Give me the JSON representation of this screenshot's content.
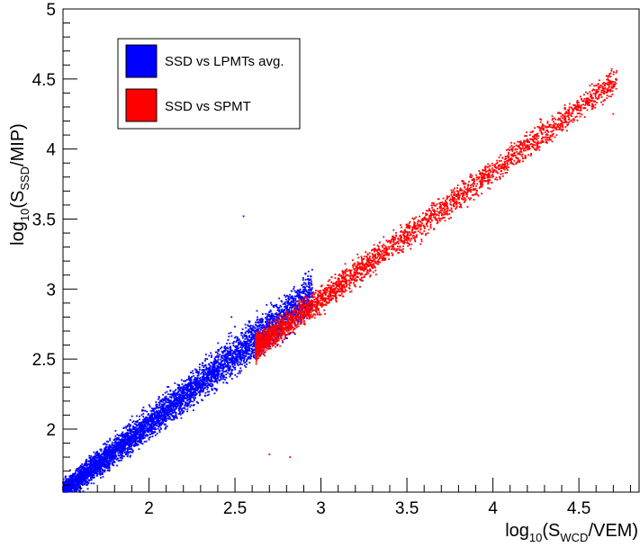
{
  "chart_data": {
    "type": "scatter",
    "xlabel": {
      "prefix": "log",
      "base": "10",
      "open": "(S",
      "sub": "WCD",
      "rest": "/VEM)"
    },
    "ylabel": {
      "prefix": "log",
      "base": "10",
      "open": "(S",
      "sub": "SSD",
      "rest": "/MIP)"
    },
    "xlim": [
      1.5,
      4.85
    ],
    "ylim": [
      1.55,
      5.0
    ],
    "xticks": [
      "2",
      "2.5",
      "3",
      "3.5",
      "4",
      "4.5"
    ],
    "yticks": [
      "2",
      "2.5",
      "3",
      "3.5",
      "4",
      "4.5",
      "5"
    ],
    "legend_position": "top-left",
    "series": [
      {
        "name": "SSD vs LPMTs avg.",
        "color": "#0000ff",
        "density": "dense band from (1.5, 1.6) rising along y ≈ 0.98x + 0.05 to about (2.9, 3.1)",
        "sample_points": [
          [
            1.55,
            1.62
          ],
          [
            1.7,
            1.72
          ],
          [
            1.85,
            1.85
          ],
          [
            2.0,
            1.98
          ],
          [
            2.15,
            2.12
          ],
          [
            2.3,
            2.27
          ],
          [
            2.45,
            2.42
          ],
          [
            2.6,
            2.57
          ],
          [
            2.75,
            2.72
          ],
          [
            2.9,
            2.9
          ],
          [
            2.48,
            2.8
          ],
          [
            2.55,
            3.52
          ]
        ]
      },
      {
        "name": "SSD vs SPMT",
        "color": "#ff0000",
        "density": "band from about (2.65, 2.5) rising to about (4.7, 4.45), thinner at high x",
        "sample_points": [
          [
            2.7,
            2.6
          ],
          [
            2.85,
            2.75
          ],
          [
            3.0,
            2.9
          ],
          [
            3.2,
            3.1
          ],
          [
            3.4,
            3.3
          ],
          [
            3.6,
            3.5
          ],
          [
            3.8,
            3.68
          ],
          [
            4.0,
            3.85
          ],
          [
            4.2,
            4.05
          ],
          [
            4.4,
            4.2
          ],
          [
            4.55,
            4.32
          ],
          [
            4.7,
            4.48
          ],
          [
            4.7,
            4.25
          ],
          [
            2.7,
            1.82
          ],
          [
            2.82,
            1.8
          ]
        ]
      }
    ]
  }
}
